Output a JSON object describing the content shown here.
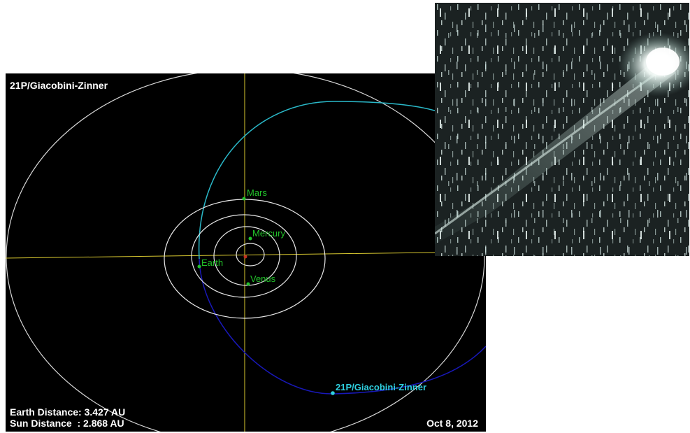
{
  "diagram": {
    "title": "21P/Giacobini-Zinner",
    "earth_distance": "Earth Distance: 3.427 AU",
    "sun_distance": "Sun Distance  : 2.868 AU",
    "date": "Oct 8, 2012",
    "comet_label": "21P/Giacobini-Zinner",
    "planets": {
      "mercury": "Mercury",
      "venus": "Venus",
      "earth": "Earth",
      "mars": "Mars"
    },
    "colors": {
      "background": "#000000",
      "planet_orbit": "#e8e8e8",
      "comet_orbit_above": "#2ab8c8",
      "comet_orbit_below": "#1818b8",
      "axis": "#d8c830",
      "planet_dot": "#22c22a",
      "sun": "#c03020"
    }
  },
  "photo": {
    "subject": "comet-photograph"
  }
}
